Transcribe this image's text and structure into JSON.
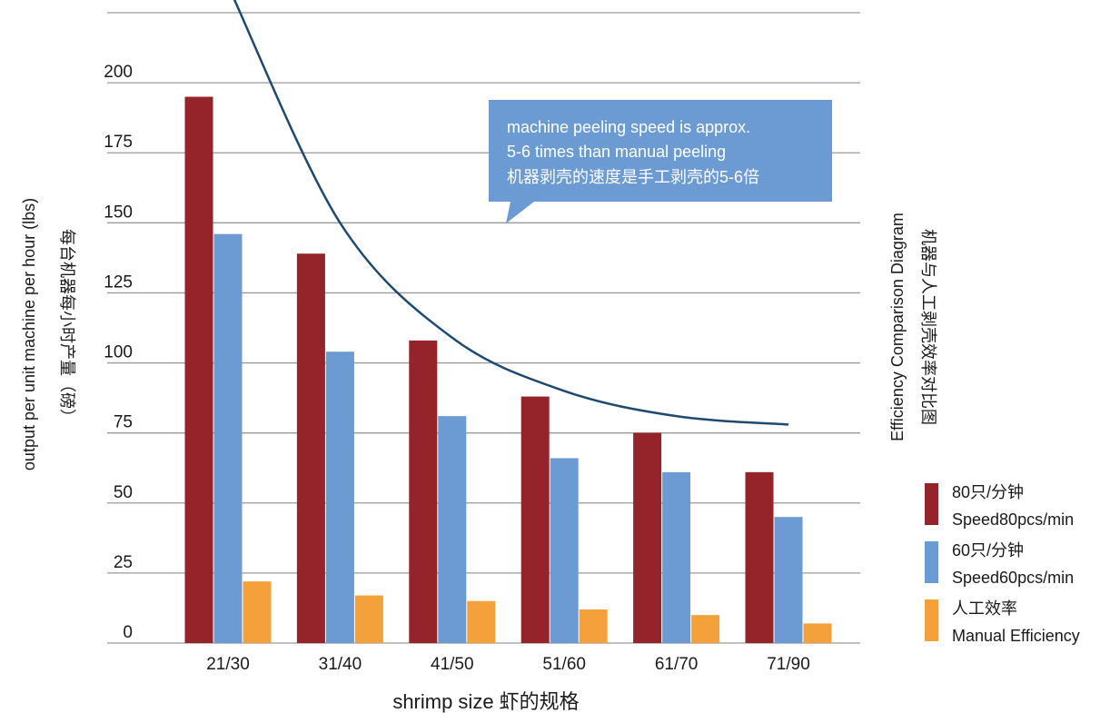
{
  "chart_data": {
    "type": "bar",
    "categories": [
      "21/30",
      "31/40",
      "41/50",
      "51/60",
      "61/70",
      "71/90"
    ],
    "series": [
      {
        "name_lines": [
          "80只/分钟",
          "Speed80pcs/min"
        ],
        "color": "#94232a",
        "values": [
          195,
          139,
          108,
          88,
          75,
          61
        ]
      },
      {
        "name_lines": [
          "60只/分钟",
          "Speed60pcs/min"
        ],
        "color": "#6b9bd2",
        "values": [
          146,
          104,
          81,
          66,
          61,
          45
        ]
      },
      {
        "name_lines": [
          "人工效率",
          "Manual Efficiency"
        ],
        "color": "#f4a13b",
        "values": [
          22,
          17,
          15,
          12,
          10,
          7
        ]
      }
    ],
    "trend_curve": {
      "color": "#1e4a72",
      "points": [
        [
          0.03,
          232
        ],
        [
          1,
          150
        ],
        [
          2,
          109
        ],
        [
          3,
          90
        ],
        [
          4,
          81
        ],
        [
          5,
          78
        ]
      ]
    },
    "yticks": [
      0,
      25,
      50,
      75,
      100,
      125,
      150,
      175,
      200
    ],
    "ylim": [
      0,
      225
    ],
    "grid": true,
    "xlabel": "shrimp size  虾的规格",
    "ylabel_en": "output per unit machine per hour (lbs)",
    "ylabel_cn": "每台机器每小时产量（磅）",
    "right_title_en": "Efficiency Comparison Diagram",
    "right_title_cn": "机器与人工剥壳效率对比图",
    "callout": {
      "lines": [
        "machine peeling speed is approx.",
        "5-6 times than manual peeling",
        "机器剥壳的速度是手工剥壳的5-6倍"
      ],
      "color": "#6b9bd2"
    },
    "legend_position": "right"
  }
}
